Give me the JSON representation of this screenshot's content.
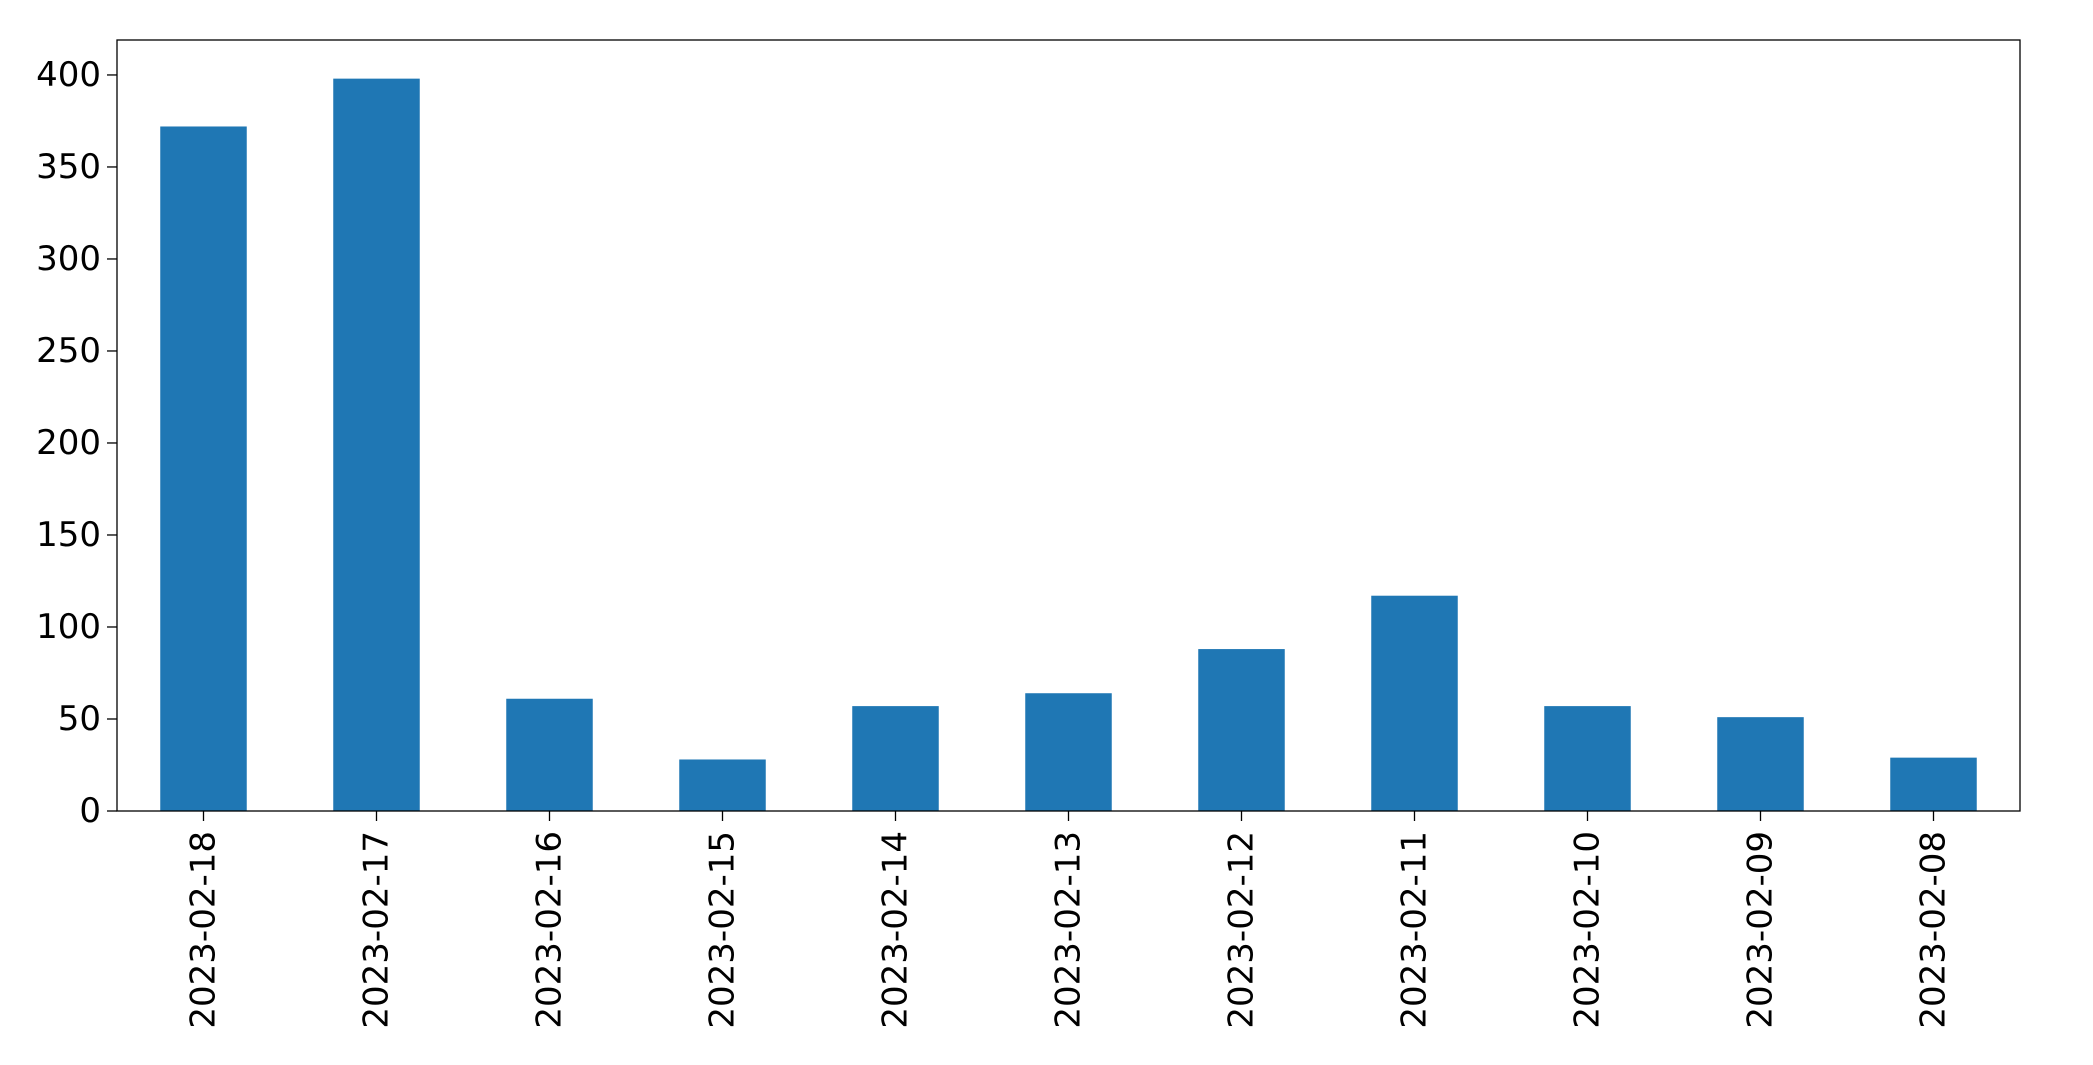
{
  "chart_data": {
    "type": "bar",
    "title": "",
    "xlabel": "",
    "ylabel": "",
    "categories": [
      "2023-02-18",
      "2023-02-17",
      "2023-02-16",
      "2023-02-15",
      "2023-02-14",
      "2023-02-13",
      "2023-02-12",
      "2023-02-11",
      "2023-02-10",
      "2023-02-09",
      "2023-02-08"
    ],
    "values": [
      372,
      398,
      61,
      28,
      57,
      64,
      88,
      117,
      57,
      51,
      29
    ],
    "ylim": [
      0,
      419
    ],
    "yticks": [
      0,
      50,
      100,
      150,
      200,
      250,
      300,
      350,
      400
    ],
    "bar_color": "#1f77b4",
    "grid": false,
    "legend": "none"
  }
}
